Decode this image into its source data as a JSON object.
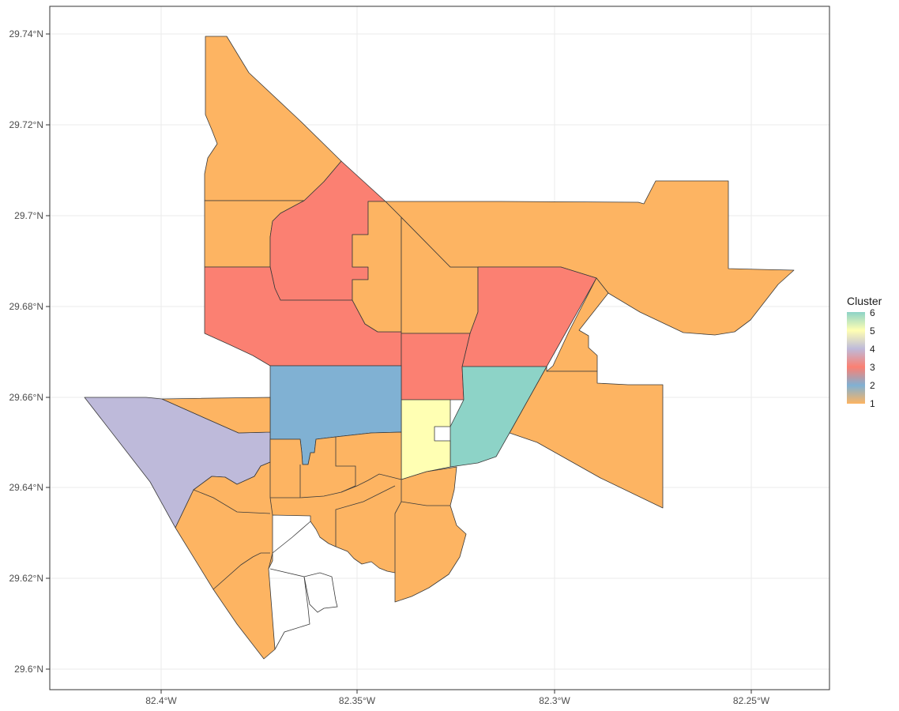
{
  "map": {
    "y_ticks": [
      "29.74°N",
      "29.72°N",
      "29.7°N",
      "29.68°N",
      "29.66°N",
      "29.64°N",
      "29.62°N",
      "29.6°N"
    ],
    "x_ticks": [
      "82.4°W",
      "82.35°W",
      "82.3°W",
      "82.25°W"
    ]
  },
  "legend": {
    "title": "Cluster",
    "labels": [
      "6",
      "5",
      "4",
      "3",
      "2",
      "1"
    ]
  },
  "colors": {
    "cluster_1": "#FDB462",
    "cluster_2": "#80B1D3",
    "cluster_3": "#FB8072",
    "cluster_4": "#BEBADA",
    "cluster_5": "#FFFFB3",
    "cluster_6": "#8DD3C7",
    "border": "#3a3a3a",
    "grid": "#ebebeb"
  },
  "regions": [
    {
      "name": "north-tract",
      "cluster": 1
    },
    {
      "name": "west-upper-tract",
      "cluster": 1
    },
    {
      "name": "north-center-tract",
      "cluster": 3
    },
    {
      "name": "west-middle-tract",
      "cluster": 3
    },
    {
      "name": "center-narrow-tract",
      "cluster": 1
    },
    {
      "name": "center-tract",
      "cluster": 1
    },
    {
      "name": "east-long-tract",
      "cluster": 1
    },
    {
      "name": "east-red-tract",
      "cluster": 3
    },
    {
      "name": "center-red-tract",
      "cluster": 3
    },
    {
      "name": "east-small-tract",
      "cluster": 1
    },
    {
      "name": "southeast-tract",
      "cluster": 1
    },
    {
      "name": "teal-tract",
      "cluster": 6
    },
    {
      "name": "yellow-tract",
      "cluster": 5
    },
    {
      "name": "blue-tract",
      "cluster": 2
    },
    {
      "name": "west-purple-tract",
      "cluster": 4
    },
    {
      "name": "southwest-tracts",
      "cluster": 1
    }
  ]
}
